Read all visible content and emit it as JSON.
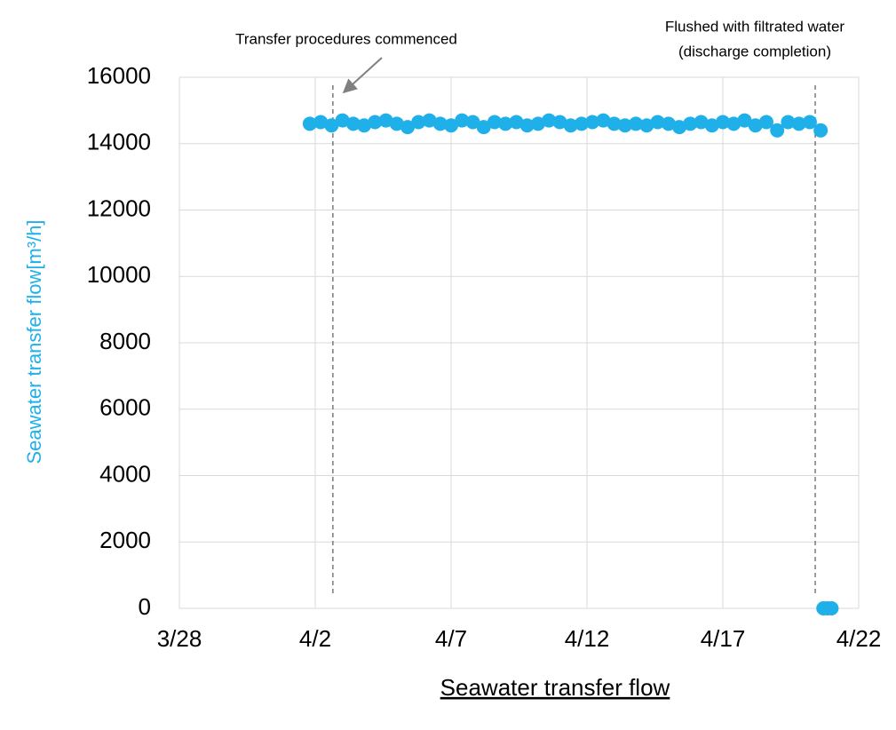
{
  "chart_data": {
    "type": "scatter",
    "x_label": "Seawater transfer flow",
    "y_label": "Seawater transfer flow[m³/h]",
    "annotations": [
      {
        "text": [
          "Transfer procedures commenced"
        ],
        "x": 5.65
      },
      {
        "text": [
          "Flushed with filtrated water",
          "(discharge completion)"
        ],
        "x": 23.4
      }
    ],
    "x": [
      4.8,
      5.2,
      5.6,
      6.0,
      6.4,
      6.8,
      7.2,
      7.6,
      8.0,
      8.4,
      8.8,
      9.2,
      9.6,
      10.0,
      10.4,
      10.8,
      11.2,
      11.6,
      12.0,
      12.4,
      12.8,
      13.2,
      13.6,
      14.0,
      14.4,
      14.8,
      15.2,
      15.6,
      16.0,
      16.4,
      16.8,
      17.2,
      17.6,
      18.0,
      18.4,
      18.8,
      19.2,
      19.6,
      20.0,
      20.4,
      20.8,
      21.2,
      21.6,
      22.0,
      22.4,
      22.8,
      23.2,
      23.6,
      23.7,
      23.85,
      24.0
    ],
    "values": [
      14600,
      14650,
      14550,
      14700,
      14600,
      14550,
      14650,
      14700,
      14600,
      14500,
      14650,
      14700,
      14600,
      14550,
      14700,
      14650,
      14500,
      14650,
      14600,
      14650,
      14550,
      14600,
      14700,
      14650,
      14550,
      14600,
      14650,
      14700,
      14600,
      14550,
      14600,
      14550,
      14650,
      14600,
      14500,
      14600,
      14650,
      14550,
      14650,
      14600,
      14700,
      14550,
      14650,
      14400,
      14650,
      14600,
      14650,
      14400,
      0,
      0,
      0
    ],
    "color": "#1fb0ea",
    "xlim": [
      0,
      25
    ],
    "xticks": [
      {
        "value": 0,
        "label": "3/28"
      },
      {
        "value": 5,
        "label": "4/2"
      },
      {
        "value": 10,
        "label": "4/7"
      },
      {
        "value": 15,
        "label": "4/12"
      },
      {
        "value": 20,
        "label": "4/17"
      },
      {
        "value": 25,
        "label": "4/22"
      }
    ],
    "ylim": [
      0,
      16000
    ],
    "yticks": [
      0,
      2000,
      4000,
      6000,
      8000,
      10000,
      12000,
      14000,
      16000
    ],
    "grid": true
  }
}
